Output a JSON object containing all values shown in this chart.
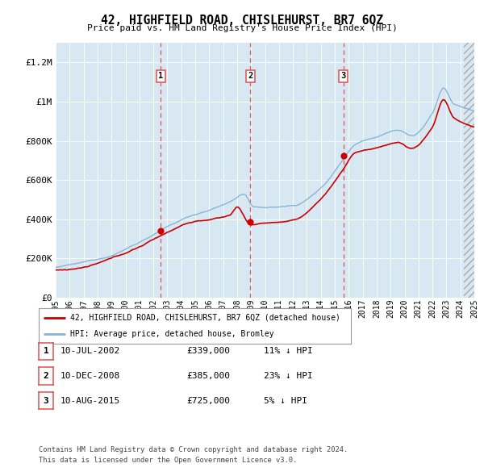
{
  "title": "42, HIGHFIELD ROAD, CHISLEHURST, BR7 6QZ",
  "subtitle": "Price paid vs. HM Land Registry's House Price Index (HPI)",
  "x_start_year": 1995,
  "x_end_year": 2025,
  "y_min": 0,
  "y_max": 1300000,
  "y_ticks": [
    0,
    200000,
    400000,
    600000,
    800000,
    1000000,
    1200000
  ],
  "y_tick_labels": [
    "£0",
    "£200K",
    "£400K",
    "£600K",
    "£800K",
    "£1M",
    "£1.2M"
  ],
  "bg_color": "#d8e8f3",
  "hpi_line_color": "#8ab4d4",
  "price_line_color": "#cc0000",
  "sale_marker_color": "#cc0000",
  "vline_color": "#e05050",
  "grid_color": "#ffffff",
  "sale1_year": 2002.53,
  "sale1_price": 339000,
  "sale2_year": 2008.95,
  "sale2_price": 385000,
  "sale3_year": 2015.61,
  "sale3_price": 725000,
  "legend1": "42, HIGHFIELD ROAD, CHISLEHURST, BR7 6QZ (detached house)",
  "legend2": "HPI: Average price, detached house, Bromley",
  "table_rows": [
    {
      "num": "1",
      "date": "10-JUL-2002",
      "price": "£339,000",
      "hpi": "11% ↓ HPI"
    },
    {
      "num": "2",
      "date": "10-DEC-2008",
      "price": "£385,000",
      "hpi": "23% ↓ HPI"
    },
    {
      "num": "3",
      "date": "10-AUG-2015",
      "price": "£725,000",
      "hpi": "5% ↓ HPI"
    }
  ],
  "footer1": "Contains HM Land Registry data © Crown copyright and database right 2024.",
  "footer2": "This data is licensed under the Open Government Licence v3.0."
}
